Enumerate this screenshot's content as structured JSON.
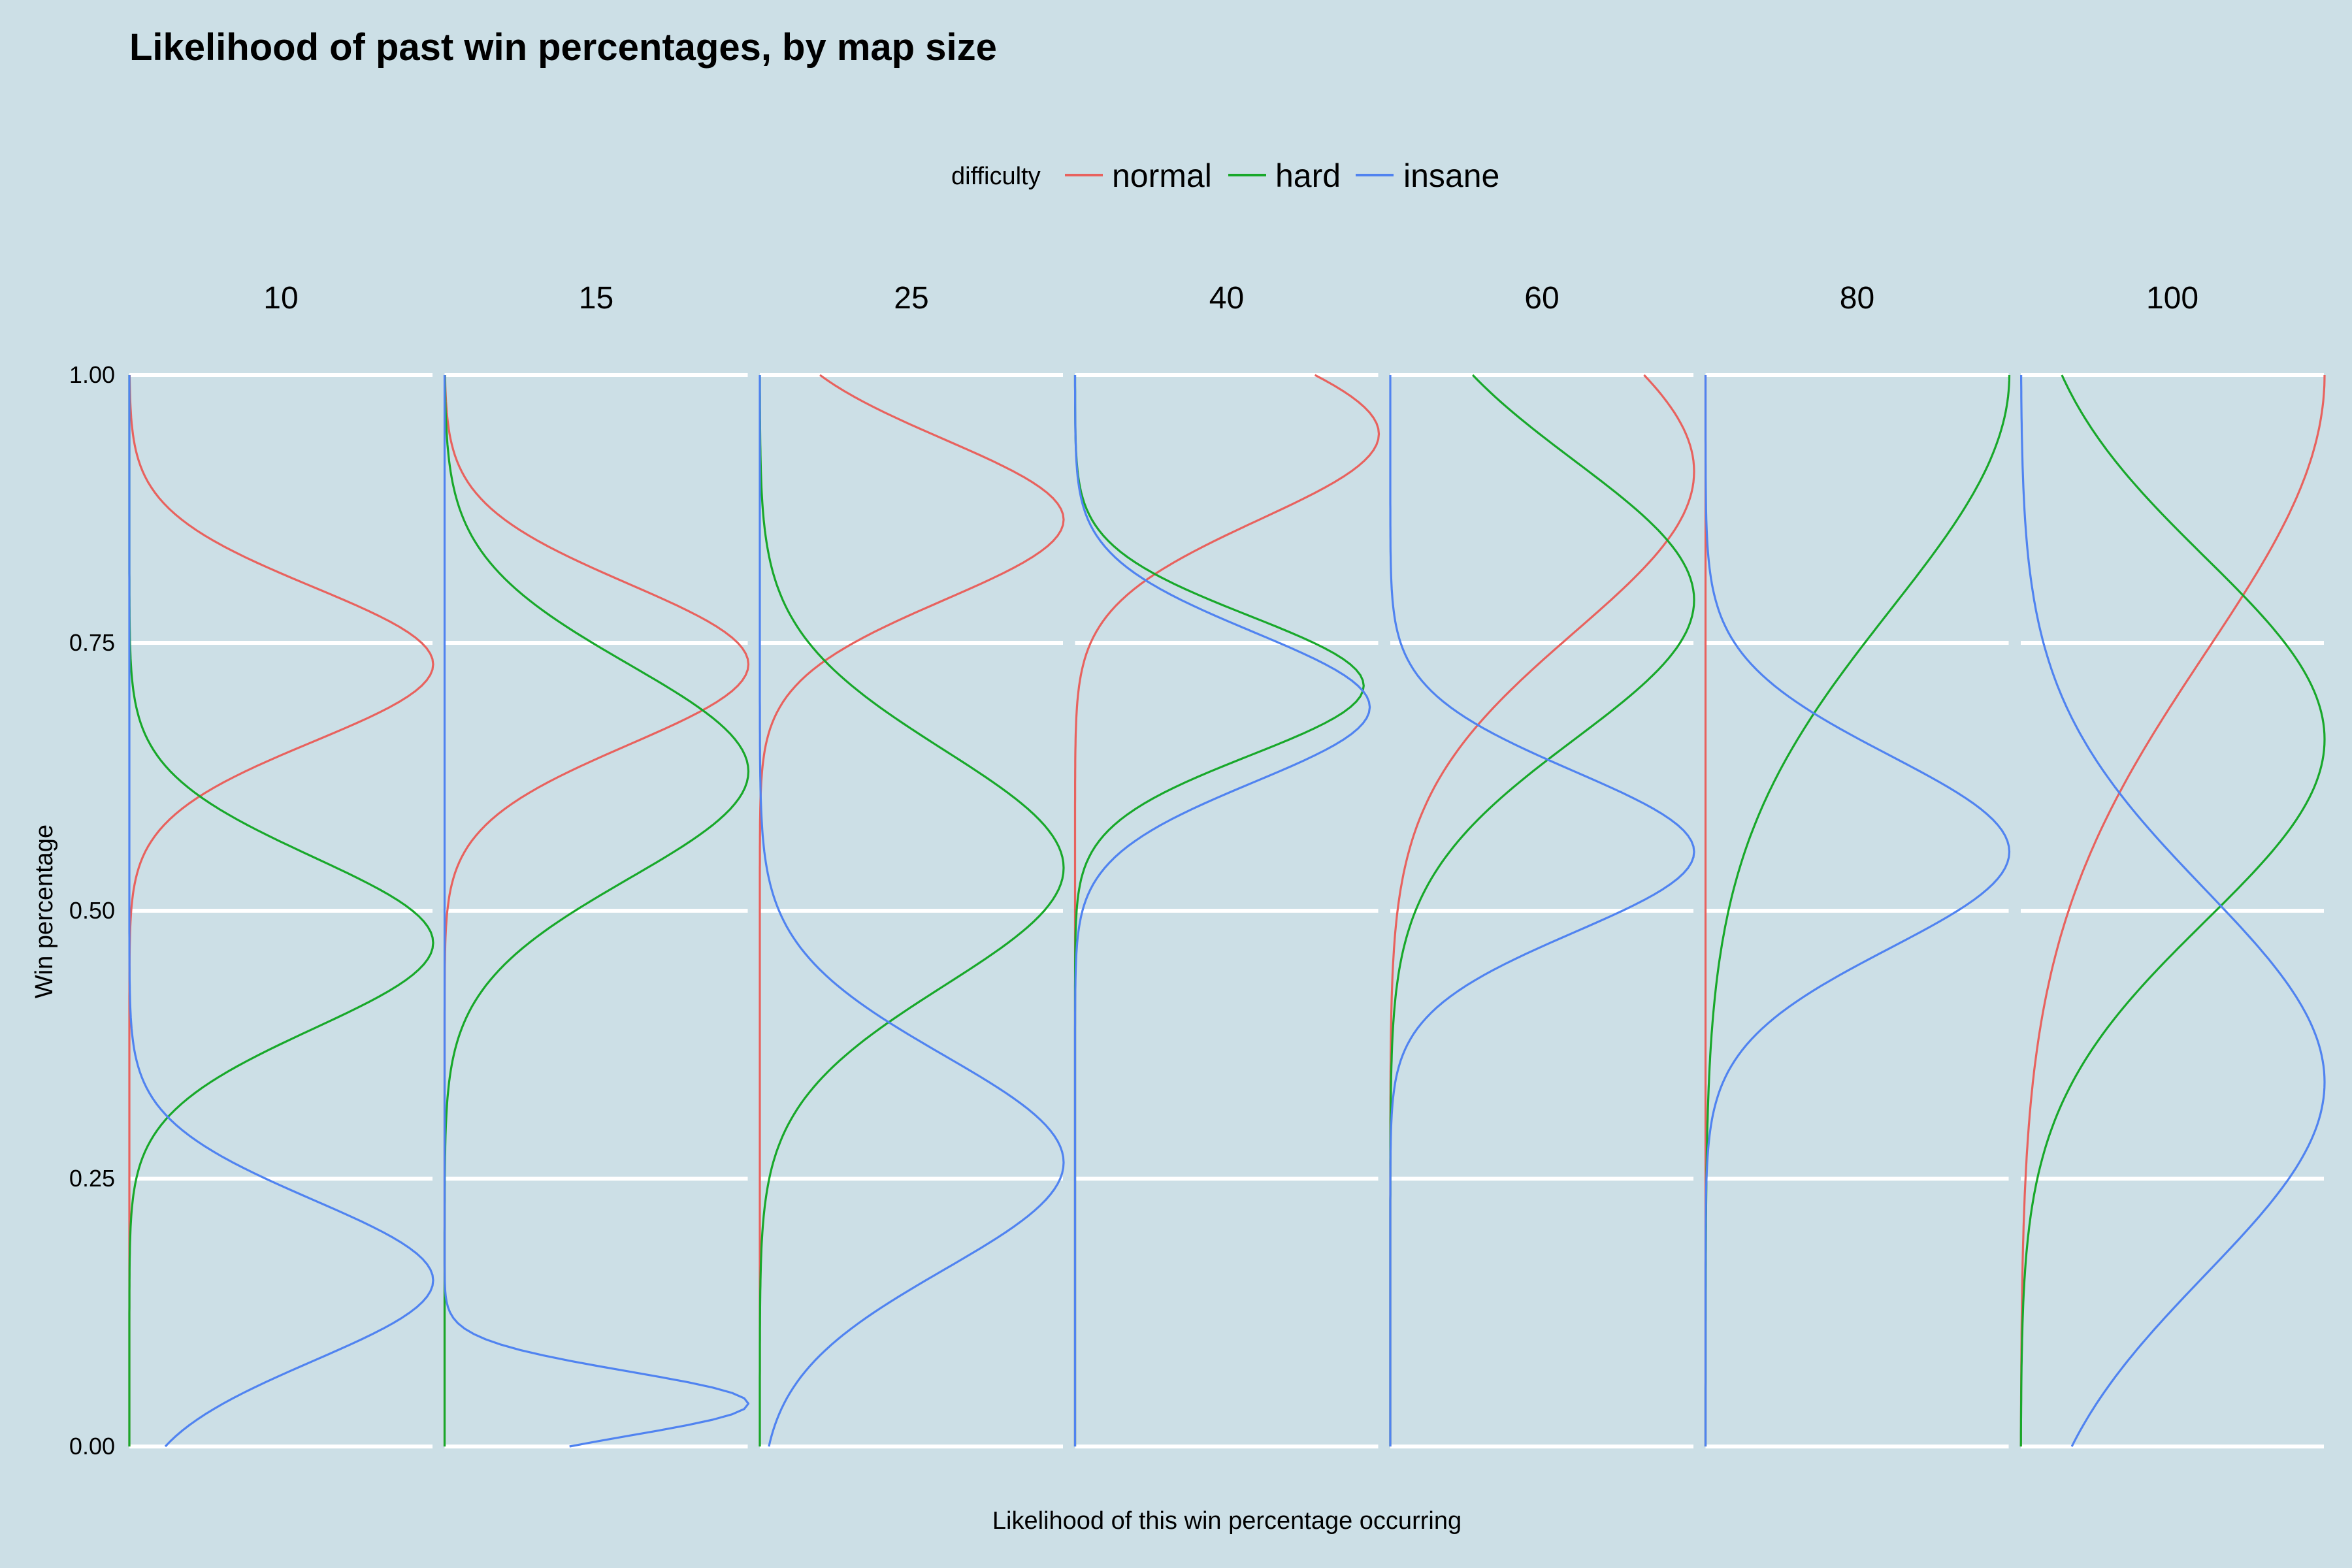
{
  "title": "Likelihood of past win percentages, by map size",
  "colors": {
    "background": "#ccdfe6",
    "grid": "#ffffff",
    "normal": "#e8625e",
    "hard": "#18a82a",
    "insane": "#5083f0"
  },
  "chart_data": {
    "type": "line",
    "subtype": "faceted density (ridgeline) plot, vertical orientation",
    "title": "Likelihood of past win percentages, by map size",
    "xlabel": "Likelihood of this win percentage occurring",
    "ylabel": "Win percentage",
    "ylim": [
      0,
      1
    ],
    "y_ticks": [
      "0.00",
      "0.25",
      "0.50",
      "0.75",
      "1.00"
    ],
    "grid": true,
    "legend": {
      "title": "difficulty",
      "placement": "top-center",
      "entries": [
        "normal",
        "hard",
        "insane"
      ]
    },
    "facets": [
      {
        "label": "10",
        "series": [
          {
            "name": "normal",
            "peak": 0.73,
            "sd": 0.072,
            "max_width": 1.0
          },
          {
            "name": "hard",
            "peak": 0.47,
            "sd": 0.08,
            "max_width": 1.0
          },
          {
            "name": "insane",
            "peak": 0.155,
            "sd": 0.075,
            "max_width": 1.0
          }
        ]
      },
      {
        "label": "15",
        "series": [
          {
            "name": "normal",
            "peak": 0.73,
            "sd": 0.075,
            "max_width": 1.0
          },
          {
            "name": "hard",
            "peak": 0.63,
            "sd": 0.1,
            "max_width": 1.0
          },
          {
            "name": "insane",
            "peak": 0.04,
            "sd": 0.03,
            "max_width": 1.0
          }
        ]
      },
      {
        "label": "25",
        "series": [
          {
            "name": "normal",
            "peak": 0.865,
            "sd": 0.075,
            "max_width": 1.0
          },
          {
            "name": "hard",
            "peak": 0.54,
            "sd": 0.11,
            "max_width": 1.0
          },
          {
            "name": "insane",
            "peak": 0.265,
            "sd": 0.1,
            "max_width": 1.0
          }
        ]
      },
      {
        "label": "40",
        "series": [
          {
            "name": "normal",
            "peak": 0.945,
            "sd": 0.08,
            "max_width": 1.0
          },
          {
            "name": "hard",
            "peak": 0.71,
            "sd": 0.065,
            "max_width": 0.95
          },
          {
            "name": "insane",
            "peak": 0.69,
            "sd": 0.07,
            "max_width": 0.97
          }
        ]
      },
      {
        "label": "60",
        "series": [
          {
            "name": "normal",
            "peak": 0.91,
            "sd": 0.15,
            "max_width": 1.0
          },
          {
            "name": "hard",
            "peak": 0.79,
            "sd": 0.13,
            "max_width": 1.0
          },
          {
            "name": "insane",
            "peak": 0.555,
            "sd": 0.075,
            "max_width": 1.0
          }
        ]
      },
      {
        "label": "80",
        "series": [
          {
            "name": "normal",
            "peak": 1.0,
            "sd": 0.02,
            "max_width": 0.0
          },
          {
            "name": "hard",
            "peak": 1.0,
            "sd": 0.22,
            "max_width": 1.0
          },
          {
            "name": "insane",
            "peak": 0.555,
            "sd": 0.09,
            "max_width": 1.0
          }
        ]
      },
      {
        "label": "100",
        "series": [
          {
            "name": "normal",
            "peak": 1.0,
            "sd": 0.26,
            "max_width": 1.0
          },
          {
            "name": "hard",
            "peak": 0.66,
            "sd": 0.17,
            "max_width": 1.0
          },
          {
            "name": "insane",
            "peak": 0.34,
            "sd": 0.18,
            "max_width": 1.0
          }
        ]
      }
    ]
  }
}
